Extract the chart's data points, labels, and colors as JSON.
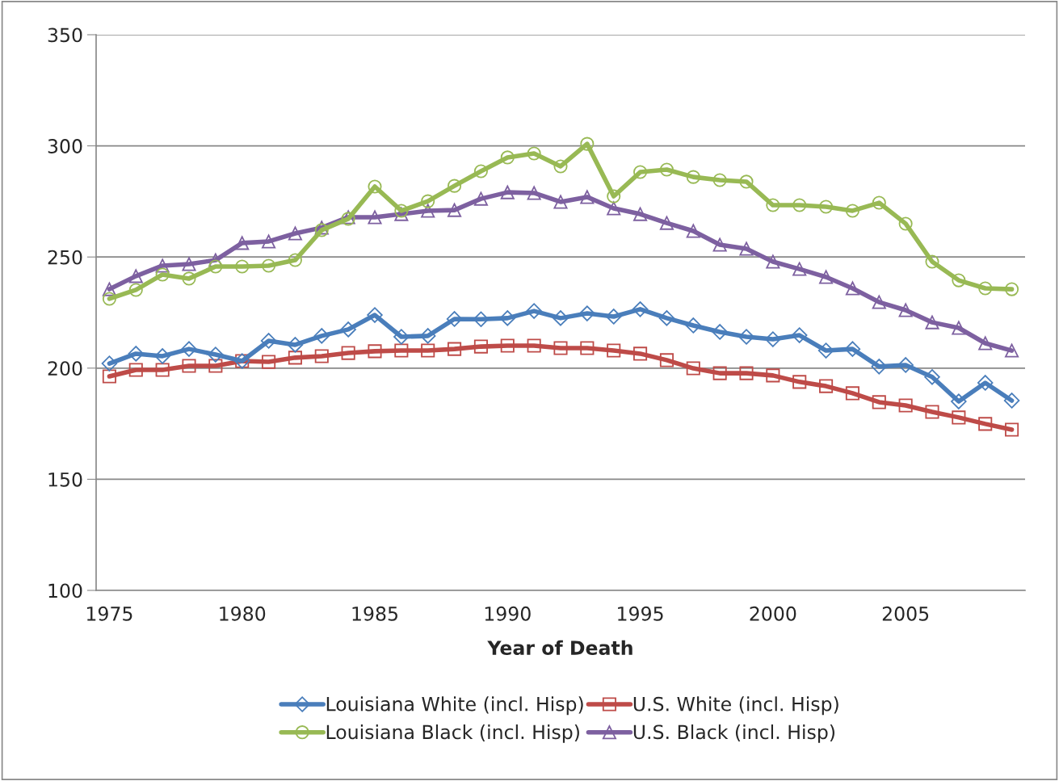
{
  "chart_data": {
    "type": "line",
    "xlabel": "Year of Death",
    "categories": [
      "1975",
      null,
      null,
      null,
      null,
      "1980",
      null,
      null,
      null,
      null,
      "1985",
      null,
      null,
      null,
      null,
      "1990",
      null,
      null,
      null,
      null,
      "1995",
      null,
      null,
      null,
      null,
      "2000",
      null,
      null,
      null,
      null,
      "2005",
      null,
      null,
      null,
      null
    ],
    "series": [
      {
        "name": "Louisiana White (incl. Hisp)",
        "color": "#4a7ebb",
        "marker": "diamond",
        "values": [
          202.1,
          206.5,
          205.4,
          208.6,
          206.1,
          203.2,
          212.3,
          210.5,
          214.5,
          217.4,
          223.9,
          214.1,
          214.5,
          222.1,
          222,
          222.5,
          225.7,
          222.5,
          224.6,
          223.2,
          226.5,
          222.5,
          219.2,
          216.3,
          214.1,
          213,
          214.8,
          207.9,
          208.6,
          200.7,
          201.4,
          196,
          185,
          193.4,
          185.4
        ]
      },
      {
        "name": "U.S. White (incl. Hisp)",
        "color": "#be4b48",
        "marker": "square",
        "values": [
          196.3,
          199.2,
          199.2,
          201,
          201,
          203.2,
          202.8,
          204.7,
          205.4,
          206.8,
          207.6,
          207.9,
          207.9,
          208.6,
          209.7,
          210.1,
          210.1,
          209,
          209,
          207.9,
          206.5,
          203.6,
          199.9,
          197.7,
          197.7,
          196.7,
          193.8,
          191.9,
          188.7,
          184.7,
          183.2,
          180.3,
          177.8,
          174.9,
          172.3
        ]
      },
      {
        "name": "Louisiana Black (incl. Hisp)",
        "color": "#98b954",
        "marker": "circle",
        "values": [
          231.2,
          235.2,
          242.1,
          240.3,
          245.7,
          245.7,
          246.1,
          248.6,
          262.1,
          267.2,
          281.7,
          270.8,
          275.1,
          282,
          288.6,
          294.8,
          296.6,
          290.8,
          300.9,
          277.3,
          288.2,
          289.3,
          286,
          284.6,
          283.9,
          273.3,
          273.3,
          272.6,
          270.8,
          274.4,
          265,
          247.9,
          239.5,
          235.9,
          235.5
        ]
      },
      {
        "name": "U.S. Black (incl. Hisp)",
        "color": "#7d60a0",
        "marker": "triangle",
        "values": [
          235.5,
          241.4,
          246.1,
          246.8,
          248.6,
          256.3,
          257,
          260.6,
          263.2,
          267.9,
          267.9,
          269.3,
          270.8,
          271.1,
          276.2,
          279.1,
          278.8,
          274.8,
          277,
          271.9,
          269.3,
          265.3,
          261.7,
          255.5,
          253.7,
          247.9,
          244.6,
          241,
          235.9,
          229.7,
          226.1,
          220.6,
          218.1,
          211.2,
          207.9
        ]
      }
    ],
    "ylim": [
      100,
      350
    ],
    "yticks": [
      100,
      150,
      200,
      250,
      300,
      350
    ],
    "grid": "y",
    "legend": "bottom",
    "line_style": "solid"
  }
}
